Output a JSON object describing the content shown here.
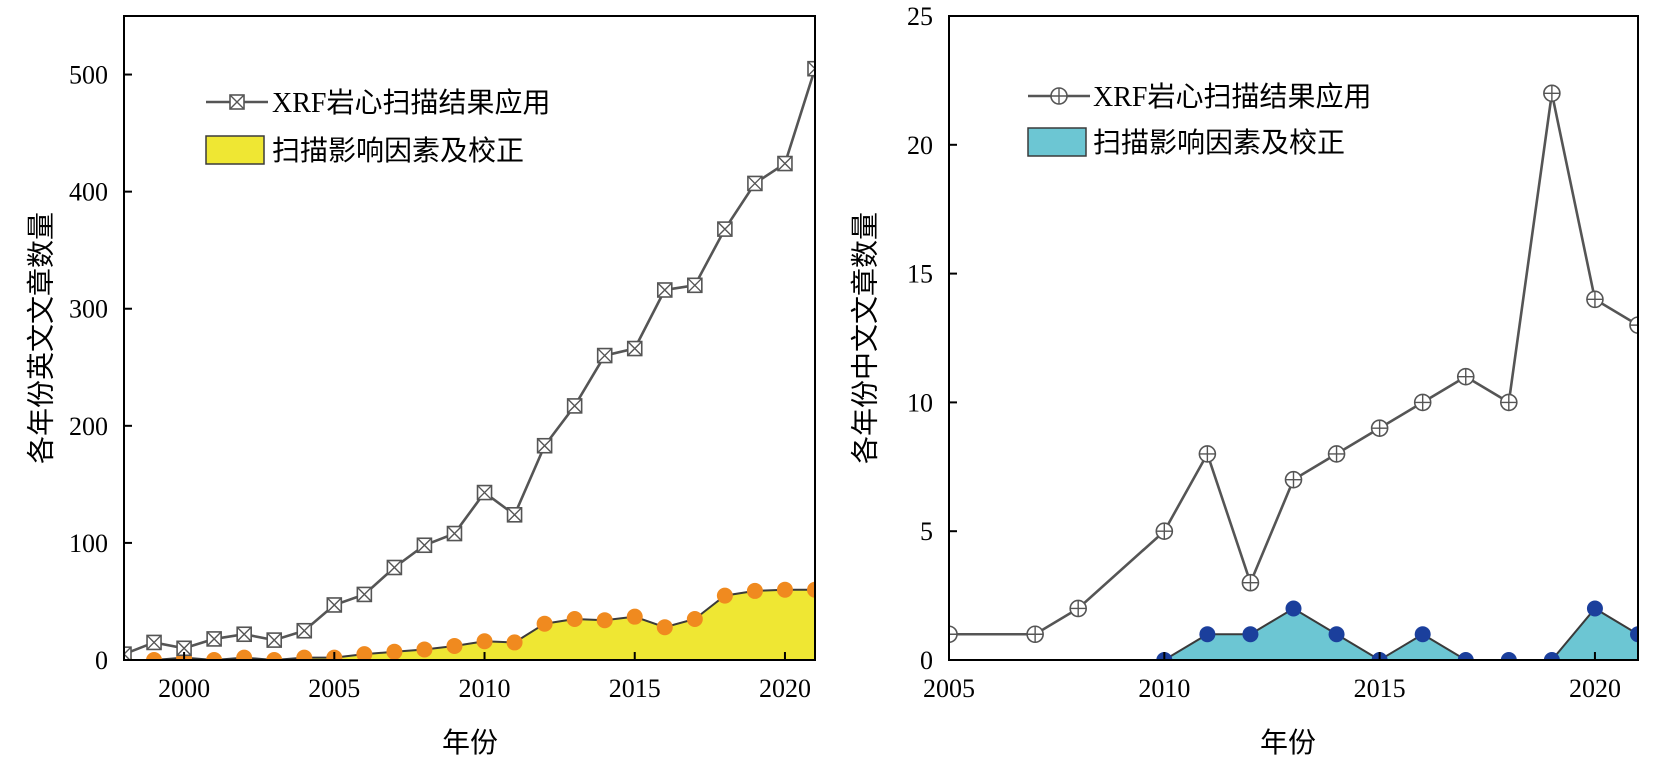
{
  "chart_data": [
    {
      "type": "line",
      "xlabel": "年份",
      "ylabel": "各年份英文文章数量",
      "xlim": [
        1998,
        2021
      ],
      "ylim": [
        0,
        550
      ],
      "xticks": [
        2000,
        2005,
        2010,
        2015,
        2020
      ],
      "yticks": [
        0,
        100,
        200,
        300,
        400,
        500
      ],
      "grid": false,
      "legend_position": "top-left",
      "x": [
        1998,
        1999,
        2000,
        2001,
        2002,
        2003,
        2004,
        2005,
        2006,
        2007,
        2008,
        2009,
        2010,
        2011,
        2012,
        2013,
        2014,
        2015,
        2016,
        2017,
        2018,
        2019,
        2020,
        2021
      ],
      "series": [
        {
          "name": "XRF岩心扫描结果应用",
          "kind": "line",
          "marker": "square-x",
          "color": "#555555",
          "values": [
            5,
            15,
            10,
            18,
            22,
            17,
            25,
            47,
            56,
            79,
            98,
            108,
            143,
            124,
            183,
            217,
            260,
            266,
            316,
            320,
            368,
            407,
            424,
            505
          ]
        },
        {
          "name": "扫描影响因素及校正",
          "kind": "area",
          "fill": "#efe733",
          "marker_color": "#f08a1f",
          "values": [
            0,
            0,
            2,
            0,
            2,
            0,
            2,
            2,
            5,
            7,
            9,
            12,
            16,
            15,
            31,
            35,
            34,
            37,
            28,
            35,
            55,
            59,
            60,
            60
          ]
        }
      ]
    },
    {
      "type": "line",
      "xlabel": "年份",
      "ylabel": "各年份中文文章数量",
      "xlim": [
        2005,
        2021
      ],
      "ylim": [
        0,
        25
      ],
      "xticks": [
        2005,
        2010,
        2015,
        2020
      ],
      "yticks": [
        0,
        5,
        10,
        15,
        20,
        25
      ],
      "grid": false,
      "legend_position": "top-left",
      "x": [
        2005,
        2006,
        2007,
        2008,
        2009,
        2010,
        2011,
        2012,
        2013,
        2014,
        2015,
        2016,
        2017,
        2018,
        2019,
        2020,
        2021
      ],
      "series": [
        {
          "name": "XRF岩心扫描结果应用",
          "kind": "line",
          "marker": "circle-plus",
          "color": "#555555",
          "values": [
            1,
            null,
            1,
            2,
            null,
            5,
            8,
            3,
            7,
            8,
            9,
            10,
            11,
            10,
            22,
            14,
            13
          ]
        },
        {
          "name": "扫描影响因素及校正",
          "kind": "area",
          "fill": "#6cc6d3",
          "marker_color": "#1b3f9c",
          "values": [
            null,
            null,
            null,
            null,
            null,
            0,
            1,
            1,
            2,
            1,
            0,
            1,
            0,
            0,
            0,
            2,
            1
          ]
        }
      ]
    }
  ]
}
